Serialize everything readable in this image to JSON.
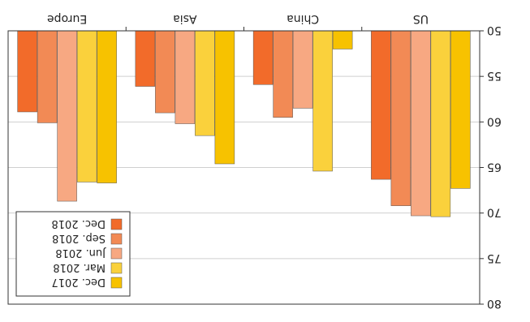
{
  "chart_data": {
    "type": "bar",
    "categories": [
      "US",
      "China",
      "Asia",
      "Europe"
    ],
    "series": [
      {
        "name": "Dec. 2017",
        "values": [
          67.3,
          52.0,
          64.6,
          66.7
        ],
        "color": "#F7C200"
      },
      {
        "name": "Mar. 2018",
        "values": [
          70.4,
          65.4,
          61.5,
          66.6
        ],
        "color": "#FAD13C"
      },
      {
        "name": "Jun. 2018",
        "values": [
          70.3,
          58.5,
          60.2,
          68.7
        ],
        "color": "#F7A882"
      },
      {
        "name": "Sep. 2018",
        "values": [
          69.2,
          59.5,
          59.0,
          60.1
        ],
        "color": "#F28A55"
      },
      {
        "name": "Dec. 2018",
        "values": [
          66.3,
          55.9,
          56.1,
          58.9
        ],
        "color": "#F26B2A"
      }
    ],
    "yticks": [
      50,
      55,
      60,
      65,
      70,
      75,
      80
    ],
    "ylim": [
      50,
      80
    ],
    "grid": true,
    "legend": "top-right"
  }
}
